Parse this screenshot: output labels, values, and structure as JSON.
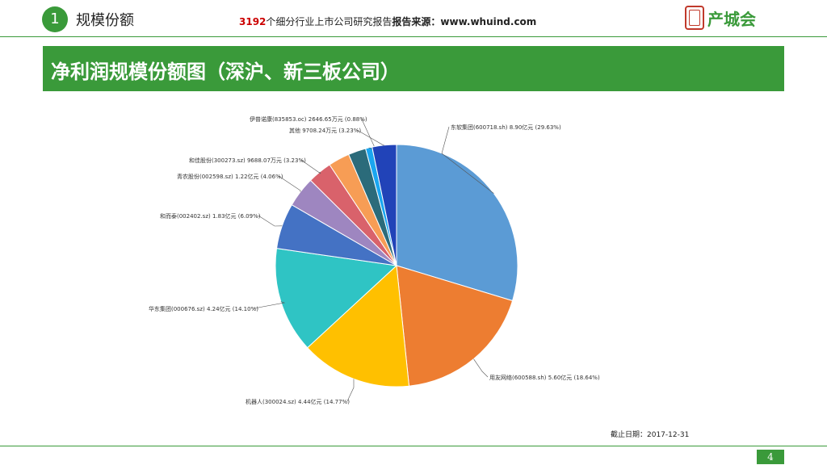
{
  "header": {
    "section_number": "1",
    "section_label": "规模份额",
    "source_count": "3192",
    "source_text": "个细分行业上市公司研究报告",
    "source_bold": "报告来源：www.whuind.com",
    "logo_text": "产城会"
  },
  "banner": {
    "title": "净利润规模份额图（深沪、新三板公司）"
  },
  "footer": {
    "date_note": "截止日期：2017-12-31",
    "page_number": "4"
  },
  "chart_data": {
    "type": "pie",
    "title": "",
    "slices": [
      {
        "label": "东软集团(600718.sh) 8.90亿元 (29.63%)",
        "value": 29.63,
        "color": "#5b9bd5"
      },
      {
        "label": "用友网络(600588.sh) 5.60亿元 (18.64%)",
        "value": 18.64,
        "color": "#ed7d31"
      },
      {
        "label": "机器人(300024.sz) 4.44亿元 (14.77%)",
        "value": 14.77,
        "color": "#ffc000"
      },
      {
        "label": "华东集团(000676.sz) 4.24亿元 (14.10%)",
        "value": 14.1,
        "color": "#2fc4c4"
      },
      {
        "label": "和而泰(002402.sz) 1.83亿元 (6.09%)",
        "value": 6.09,
        "color": "#4472c4"
      },
      {
        "label": "青农股份(002598.sz) 1.22亿元 (4.06%)",
        "value": 4.06,
        "color": "#9e86c0"
      },
      {
        "label": "和佳股份(300273.sz) 9688.07万元 (3.23%)",
        "value": 3.23,
        "color": "#d9626b"
      },
      {
        "label": "",
        "value": 2.85,
        "color": "#f79d55"
      },
      {
        "label": "",
        "value": 2.35,
        "color": "#2b6b7a"
      },
      {
        "label": "伊普诺康(835853.oc) 2646.65万元 (0.88%)",
        "value": 0.88,
        "color": "#1aa6f0"
      },
      {
        "label": "其他 9708.24万元 (3.23%)",
        "value": 3.23,
        "color": "#2143b8"
      }
    ]
  }
}
